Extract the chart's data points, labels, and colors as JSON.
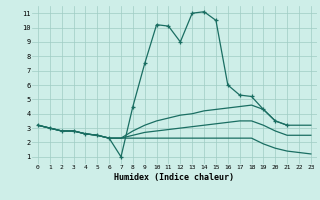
{
  "xlabel": "Humidex (Indice chaleur)",
  "bg_color": "#ceeee8",
  "grid_color": "#a0ccc4",
  "line_color": "#1a6e62",
  "xlim": [
    -0.5,
    23.5
  ],
  "ylim": [
    0.5,
    11.5
  ],
  "xticks": [
    0,
    1,
    2,
    3,
    4,
    5,
    6,
    7,
    8,
    9,
    10,
    11,
    12,
    13,
    14,
    15,
    16,
    17,
    18,
    19,
    20,
    21,
    22,
    23
  ],
  "yticks": [
    1,
    2,
    3,
    4,
    5,
    6,
    7,
    8,
    9,
    10,
    11
  ],
  "lines": [
    {
      "x": [
        0,
        1,
        2,
        3,
        4,
        5,
        6,
        7,
        8,
        9,
        10,
        11,
        12,
        13,
        14,
        15,
        16,
        17,
        18,
        19,
        20,
        21
      ],
      "y": [
        3.2,
        3.0,
        2.8,
        2.8,
        2.6,
        2.5,
        2.3,
        1.0,
        4.5,
        7.5,
        10.2,
        10.1,
        9.0,
        11.0,
        11.1,
        10.5,
        6.0,
        5.3,
        5.2,
        4.3,
        3.5,
        3.2
      ],
      "marker": true
    },
    {
      "x": [
        0,
        1,
        2,
        3,
        4,
        5,
        6,
        7,
        8,
        9,
        10,
        11,
        12,
        13,
        14,
        15,
        16,
        17,
        18,
        19,
        20,
        21,
        22,
        23
      ],
      "y": [
        3.2,
        3.0,
        2.8,
        2.8,
        2.6,
        2.5,
        2.3,
        2.3,
        2.8,
        3.2,
        3.5,
        3.7,
        3.9,
        4.0,
        4.2,
        4.3,
        4.4,
        4.5,
        4.6,
        4.3,
        3.5,
        3.2,
        3.2,
        3.2
      ],
      "marker": false
    },
    {
      "x": [
        0,
        1,
        2,
        3,
        4,
        5,
        6,
        7,
        8,
        9,
        10,
        11,
        12,
        13,
        14,
        15,
        16,
        17,
        18,
        19,
        20,
        21,
        22,
        23
      ],
      "y": [
        3.2,
        3.0,
        2.8,
        2.8,
        2.6,
        2.5,
        2.3,
        2.3,
        2.5,
        2.7,
        2.8,
        2.9,
        3.0,
        3.1,
        3.2,
        3.3,
        3.4,
        3.5,
        3.5,
        3.2,
        2.8,
        2.5,
        2.5,
        2.5
      ],
      "marker": false
    },
    {
      "x": [
        0,
        1,
        2,
        3,
        4,
        5,
        6,
        7,
        8,
        9,
        10,
        11,
        12,
        13,
        14,
        15,
        16,
        17,
        18,
        19,
        20,
        21,
        22,
        23
      ],
      "y": [
        3.2,
        3.0,
        2.8,
        2.8,
        2.6,
        2.5,
        2.3,
        2.3,
        2.3,
        2.3,
        2.3,
        2.3,
        2.3,
        2.3,
        2.3,
        2.3,
        2.3,
        2.3,
        2.3,
        1.9,
        1.6,
        1.4,
        1.3,
        1.2
      ],
      "marker": false
    }
  ]
}
